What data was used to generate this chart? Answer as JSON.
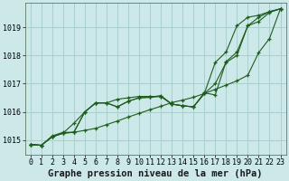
{
  "title": "Graphe pression niveau de la mer (hPa)",
  "background_color": "#cde8e8",
  "plot_bg_color": "#cde8e8",
  "grid_color": "#aacfcf",
  "line_color": "#1e5c1e",
  "x_values": [
    0,
    1,
    2,
    3,
    4,
    5,
    6,
    7,
    8,
    9,
    10,
    11,
    12,
    13,
    14,
    15,
    16,
    17,
    18,
    19,
    20,
    21,
    22,
    23
  ],
  "series": [
    [
      1014.85,
      1014.82,
      1015.12,
      1015.25,
      1015.28,
      1015.35,
      1015.42,
      1015.55,
      1015.68,
      1015.82,
      1015.95,
      1016.08,
      1016.2,
      1016.33,
      1016.42,
      1016.52,
      1016.65,
      1016.8,
      1016.95,
      1017.1,
      1017.3,
      1018.1,
      1018.6,
      1019.65
    ],
    [
      1014.85,
      1014.82,
      1015.12,
      1015.25,
      1015.6,
      1016.0,
      1016.32,
      1016.32,
      1016.45,
      1016.5,
      1016.55,
      1016.55,
      1016.55,
      1016.28,
      1016.22,
      1016.18,
      1016.65,
      1017.0,
      1017.75,
      1018.0,
      1019.05,
      1019.2,
      1019.52,
      1019.65
    ],
    [
      1014.85,
      1014.82,
      1015.12,
      1015.25,
      1015.28,
      1016.0,
      1016.32,
      1016.32,
      1016.18,
      1016.38,
      1016.5,
      1016.52,
      1016.58,
      1016.28,
      1016.22,
      1016.18,
      1016.68,
      1016.6,
      1017.78,
      1018.12,
      1019.05,
      1019.35,
      1019.55,
      1019.65
    ],
    [
      1014.85,
      1014.82,
      1015.15,
      1015.28,
      1015.28,
      1016.0,
      1016.32,
      1016.32,
      1016.18,
      1016.38,
      1016.5,
      1016.52,
      1016.55,
      1016.28,
      1016.22,
      1016.18,
      1016.65,
      1017.75,
      1018.12,
      1019.05,
      1019.35,
      1019.42,
      1019.55,
      1019.65
    ]
  ],
  "ylim": [
    1014.5,
    1019.85
  ],
  "yticks": [
    1015,
    1016,
    1017,
    1018,
    1019
  ],
  "xlim": [
    -0.5,
    23.5
  ],
  "xticks": [
    0,
    1,
    2,
    3,
    4,
    5,
    6,
    7,
    8,
    9,
    10,
    11,
    12,
    13,
    14,
    15,
    16,
    17,
    18,
    19,
    20,
    21,
    22,
    23
  ],
  "title_fontsize": 7.5,
  "tick_fontsize": 6,
  "marker": "+",
  "markersize": 3.5,
  "linewidth": 0.8
}
